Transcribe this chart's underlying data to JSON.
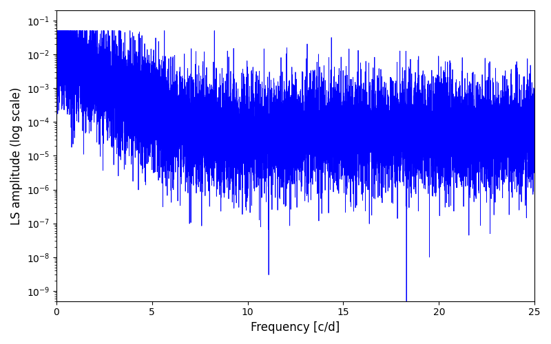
{
  "xlabel": "Frequency [c/d]",
  "ylabel": "LS amplitude (log scale)",
  "line_color": "blue",
  "line_width": 0.6,
  "xmin": 0,
  "xmax": 25,
  "ymin": 5e-10,
  "ymax": 0.2,
  "yscale": "log",
  "figsize": [
    8.0,
    5.0
  ],
  "dpi": 100,
  "bg_color": "#ffffff",
  "seed": 7,
  "n_points": 12000
}
